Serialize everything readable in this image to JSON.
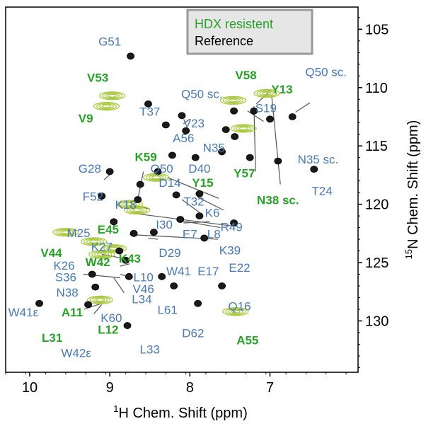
{
  "chart_data": {
    "type": "scatter",
    "title": "",
    "xlabel_sup": "1",
    "xlabel": "H Chem. Shift  (ppm)",
    "ylabel_sup": "15",
    "ylabel": "N Chem. Shift  (ppm)",
    "xlim": [
      10.3,
      5.9
    ],
    "ylim": [
      134.4,
      103.1
    ],
    "x_ticks": [
      10,
      9,
      8,
      7
    ],
    "y_ticks": [
      105,
      110,
      115,
      120,
      125,
      130
    ],
    "legend": {
      "placement": "top-right",
      "entries": [
        {
          "label": "HDX resistent",
          "color": "#2aa02a"
        },
        {
          "label": "Reference",
          "color": "#000000"
        }
      ]
    },
    "colors": {
      "reference_peak": "#1a1a1a",
      "hdx_peak": "#a8c83c",
      "label_blue": "#4a7ab0",
      "label_green": "#2aa02a"
    },
    "series": [
      {
        "name": "Reference",
        "peaks": [
          {
            "x": 8.74,
            "y": 107.3
          },
          {
            "x": 8.52,
            "y": 111.4
          },
          {
            "x": 8.1,
            "y": 112.4
          },
          {
            "x": 7.45,
            "y": 112.0
          },
          {
            "x": 7.2,
            "y": 112.0
          },
          {
            "x": 7.0,
            "y": 112.7
          },
          {
            "x": 6.72,
            "y": 112.5
          },
          {
            "x": 8.3,
            "y": 113.2
          },
          {
            "x": 8.05,
            "y": 113.7
          },
          {
            "x": 7.55,
            "y": 113.6
          },
          {
            "x": 7.44,
            "y": 114.2
          },
          {
            "x": 8.22,
            "y": 115.8
          },
          {
            "x": 7.93,
            "y": 116.0
          },
          {
            "x": 7.6,
            "y": 115.5
          },
          {
            "x": 7.25,
            "y": 116.0
          },
          {
            "x": 6.9,
            "y": 116.3
          },
          {
            "x": 6.45,
            "y": 117.0
          },
          {
            "x": 9.0,
            "y": 117.2
          },
          {
            "x": 8.62,
            "y": 118.3
          },
          {
            "x": 8.4,
            "y": 117.2
          },
          {
            "x": 8.17,
            "y": 119.2
          },
          {
            "x": 7.88,
            "y": 119.1
          },
          {
            "x": 8.65,
            "y": 119.6
          },
          {
            "x": 9.1,
            "y": 119.3
          },
          {
            "x": 8.12,
            "y": 121.3
          },
          {
            "x": 7.88,
            "y": 121.0
          },
          {
            "x": 7.45,
            "y": 121.6
          },
          {
            "x": 8.95,
            "y": 121.5
          },
          {
            "x": 8.7,
            "y": 122.5
          },
          {
            "x": 8.45,
            "y": 122.4
          },
          {
            "x": 7.82,
            "y": 122.9
          },
          {
            "x": 8.88,
            "y": 124.0
          },
          {
            "x": 8.8,
            "y": 124.8
          },
          {
            "x": 9.22,
            "y": 126.0
          },
          {
            "x": 8.76,
            "y": 126.2
          },
          {
            "x": 8.35,
            "y": 126.2
          },
          {
            "x": 9.18,
            "y": 127.1
          },
          {
            "x": 8.2,
            "y": 127.0
          },
          {
            "x": 7.6,
            "y": 127.0
          },
          {
            "x": 9.88,
            "y": 128.5
          },
          {
            "x": 9.27,
            "y": 128.6
          },
          {
            "x": 7.9,
            "y": 128.5
          },
          {
            "x": 8.78,
            "y": 130.4
          }
        ]
      },
      {
        "name": "HDX resistent",
        "peaks": [
          {
            "x": 8.97,
            "y": 110.7
          },
          {
            "x": 9.04,
            "y": 111.6
          },
          {
            "x": 7.46,
            "y": 111.1
          },
          {
            "x": 7.04,
            "y": 110.5
          },
          {
            "x": 7.33,
            "y": 113.5
          },
          {
            "x": 8.42,
            "y": 117.7
          },
          {
            "x": 8.66,
            "y": 120.5
          },
          {
            "x": 8.75,
            "y": 120.0
          },
          {
            "x": 9.55,
            "y": 122.4
          },
          {
            "x": 9.2,
            "y": 123.2
          },
          {
            "x": 8.95,
            "y": 123.8
          },
          {
            "x": 9.1,
            "y": 124.3
          },
          {
            "x": 9.12,
            "y": 128.2
          },
          {
            "x": 7.43,
            "y": 129.2
          }
        ]
      }
    ],
    "labels": [
      {
        "text": "G51",
        "x": 9.0,
        "y": 106.4,
        "color": "blue",
        "anchor": "middle"
      },
      {
        "text": "V53",
        "x": 9.15,
        "y": 109.5,
        "color": "green",
        "anchor": "middle"
      },
      {
        "text": "V9",
        "x": 9.3,
        "y": 113.0,
        "color": "green",
        "anchor": "middle"
      },
      {
        "text": "T37",
        "x": 8.5,
        "y": 112.4,
        "color": "blue",
        "anchor": "middle"
      },
      {
        "text": "Q50 sc.",
        "x": 7.85,
        "y": 110.9,
        "color": "blue",
        "anchor": "middle"
      },
      {
        "text": "V58",
        "x": 7.3,
        "y": 109.3,
        "color": "green",
        "anchor": "middle"
      },
      {
        "text": "Y13",
        "x": 6.85,
        "y": 110.5,
        "color": "green",
        "anchor": "middle"
      },
      {
        "text": "Q50 sc.",
        "x": 6.3,
        "y": 109.0,
        "color": "blue",
        "anchor": "middle"
      },
      {
        "text": "S19",
        "x": 7.05,
        "y": 112.1,
        "color": "blue",
        "anchor": "middle"
      },
      {
        "text": "V23",
        "x": 7.95,
        "y": 113.4,
        "color": "blue",
        "anchor": "middle"
      },
      {
        "text": "A56",
        "x": 8.08,
        "y": 114.7,
        "color": "blue",
        "anchor": "middle"
      },
      {
        "text": "N35",
        "x": 7.7,
        "y": 115.5,
        "color": "blue",
        "anchor": "middle"
      },
      {
        "text": "K59",
        "x": 8.55,
        "y": 116.3,
        "color": "green",
        "anchor": "middle"
      },
      {
        "text": "G28",
        "x": 9.25,
        "y": 117.3,
        "color": "blue",
        "anchor": "middle"
      },
      {
        "text": "Q50",
        "x": 8.35,
        "y": 117.3,
        "color": "blue",
        "anchor": "middle"
      },
      {
        "text": "D40",
        "x": 7.88,
        "y": 117.3,
        "color": "blue",
        "anchor": "middle"
      },
      {
        "text": "Y57",
        "x": 7.32,
        "y": 117.7,
        "color": "green",
        "anchor": "middle"
      },
      {
        "text": "N35 sc.",
        "x": 6.4,
        "y": 116.5,
        "color": "blue",
        "anchor": "middle"
      },
      {
        "text": "D14",
        "x": 8.25,
        "y": 118.5,
        "color": "blue",
        "anchor": "middle"
      },
      {
        "text": "Y15",
        "x": 7.84,
        "y": 118.5,
        "color": "green",
        "anchor": "middle"
      },
      {
        "text": "F52",
        "x": 9.21,
        "y": 119.7,
        "color": "blue",
        "anchor": "middle"
      },
      {
        "text": "T24",
        "x": 6.35,
        "y": 119.2,
        "color": "blue",
        "anchor": "middle"
      },
      {
        "text": "K18",
        "x": 8.8,
        "y": 120.4,
        "color": "blue",
        "anchor": "middle"
      },
      {
        "text": "T32",
        "x": 7.95,
        "y": 120.1,
        "color": "blue",
        "anchor": "middle"
      },
      {
        "text": "N38 sc.",
        "x": 6.9,
        "y": 120.0,
        "color": "green",
        "anchor": "middle"
      },
      {
        "text": "K6",
        "x": 7.72,
        "y": 121.1,
        "color": "blue",
        "anchor": "middle"
      },
      {
        "text": "I30",
        "x": 8.32,
        "y": 122.1,
        "color": "blue",
        "anchor": "middle"
      },
      {
        "text": "E45",
        "x": 9.02,
        "y": 122.5,
        "color": "green",
        "anchor": "middle"
      },
      {
        "text": "R49",
        "x": 7.48,
        "y": 122.3,
        "color": "blue",
        "anchor": "middle"
      },
      {
        "text": "M25",
        "x": 9.39,
        "y": 122.8,
        "color": "blue",
        "anchor": "middle"
      },
      {
        "text": "E7",
        "x": 8.0,
        "y": 122.9,
        "color": "blue",
        "anchor": "middle"
      },
      {
        "text": "L8",
        "x": 7.7,
        "y": 122.9,
        "color": "blue",
        "anchor": "middle"
      },
      {
        "text": "K27",
        "x": 9.1,
        "y": 124.0,
        "color": "blue",
        "anchor": "middle"
      },
      {
        "text": "K39",
        "x": 7.5,
        "y": 124.3,
        "color": "blue",
        "anchor": "middle"
      },
      {
        "text": "V44",
        "x": 9.73,
        "y": 124.5,
        "color": "green",
        "anchor": "middle"
      },
      {
        "text": "D29",
        "x": 8.25,
        "y": 124.5,
        "color": "blue",
        "anchor": "middle"
      },
      {
        "text": "K26",
        "x": 9.57,
        "y": 125.6,
        "color": "blue",
        "anchor": "middle"
      },
      {
        "text": "W42",
        "x": 9.15,
        "y": 125.3,
        "color": "green",
        "anchor": "middle"
      },
      {
        "text": "K43",
        "x": 8.75,
        "y": 125.0,
        "color": "green",
        "anchor": "middle"
      },
      {
        "text": "W41",
        "x": 8.14,
        "y": 126.1,
        "color": "blue",
        "anchor": "middle"
      },
      {
        "text": "E17",
        "x": 7.77,
        "y": 126.1,
        "color": "blue",
        "anchor": "middle"
      },
      {
        "text": "E22",
        "x": 7.38,
        "y": 125.8,
        "color": "blue",
        "anchor": "middle"
      },
      {
        "text": "S36",
        "x": 9.55,
        "y": 126.6,
        "color": "blue",
        "anchor": "middle"
      },
      {
        "text": "L10",
        "x": 8.58,
        "y": 126.6,
        "color": "blue",
        "anchor": "middle"
      },
      {
        "text": "V46",
        "x": 8.58,
        "y": 127.6,
        "color": "blue",
        "anchor": "middle"
      },
      {
        "text": "N38",
        "x": 9.53,
        "y": 127.9,
        "color": "blue",
        "anchor": "middle"
      },
      {
        "text": "L34",
        "x": 8.6,
        "y": 128.5,
        "color": "blue",
        "anchor": "middle"
      },
      {
        "text": "W41ε",
        "x": 10.08,
        "y": 129.6,
        "color": "blue",
        "anchor": "middle"
      },
      {
        "text": "A11",
        "x": 9.47,
        "y": 129.6,
        "color": "green",
        "anchor": "middle"
      },
      {
        "text": "K60",
        "x": 8.98,
        "y": 130.1,
        "color": "blue",
        "anchor": "middle"
      },
      {
        "text": "L61",
        "x": 8.28,
        "y": 129.4,
        "color": "blue",
        "anchor": "middle"
      },
      {
        "text": "Q16",
        "x": 7.38,
        "y": 129.1,
        "color": "blue",
        "anchor": "middle"
      },
      {
        "text": "L12",
        "x": 9.02,
        "y": 131.1,
        "color": "green",
        "anchor": "middle"
      },
      {
        "text": "L31",
        "x": 9.72,
        "y": 131.8,
        "color": "green",
        "anchor": "middle"
      },
      {
        "text": "D62",
        "x": 7.96,
        "y": 131.4,
        "color": "blue",
        "anchor": "middle"
      },
      {
        "text": "A55",
        "x": 7.28,
        "y": 132.0,
        "color": "green",
        "anchor": "middle"
      },
      {
        "text": "W42ε",
        "x": 9.42,
        "y": 133.1,
        "color": "blue",
        "anchor": "middle"
      },
      {
        "text": "L33",
        "x": 8.5,
        "y": 132.8,
        "color": "blue",
        "anchor": "middle"
      }
    ],
    "leader_lines": [
      {
        "from": [
          6.5,
          111.3
        ],
        "to": [
          6.68,
          112.1
        ]
      },
      {
        "from": [
          7.17,
          111.4
        ],
        "to": [
          7.0,
          110.3
        ]
      },
      {
        "from": [
          7.28,
          112.0
        ],
        "to": [
          7.08,
          112.9
        ]
      },
      {
        "from": [
          8.0,
          112.7
        ],
        "to": [
          8.08,
          113.1
        ]
      },
      {
        "from": [
          8.58,
          117.2
        ],
        "to": [
          8.66,
          119.9
        ]
      },
      {
        "from": [
          9.07,
          117.9
        ],
        "to": [
          8.99,
          117.4
        ]
      },
      {
        "from": [
          7.18,
          117.2
        ],
        "to": [
          7.2,
          111.6
        ]
      },
      {
        "from": [
          6.87,
          118.3
        ],
        "to": [
          6.98,
          110.6
        ]
      },
      {
        "from": [
          7.64,
          119.5
        ],
        "to": [
          8.28,
          117.7
        ]
      },
      {
        "from": [
          8.7,
          120.1
        ],
        "to": [
          8.5,
          120.4
        ]
      },
      {
        "from": [
          7.88,
          120.7
        ],
        "to": [
          8.1,
          119.6
        ]
      },
      {
        "from": [
          7.58,
          120.5
        ],
        "to": [
          7.9,
          119.4
        ]
      },
      {
        "from": [
          7.75,
          121.5
        ],
        "to": [
          8.08,
          121.6
        ]
      },
      {
        "from": [
          7.43,
          121.9
        ],
        "to": [
          8.68,
          120.8
        ]
      },
      {
        "from": [
          7.62,
          122.0
        ],
        "to": [
          8.12,
          121.4
        ]
      },
      {
        "from": [
          7.65,
          123.0
        ],
        "to": [
          8.75,
          122.6
        ]
      },
      {
        "from": [
          8.4,
          123.0
        ],
        "to": [
          8.52,
          122.9
        ]
      },
      {
        "from": [
          9.1,
          124.3
        ],
        "to": [
          8.86,
          124.6
        ]
      },
      {
        "from": [
          9.33,
          126.0
        ],
        "to": [
          8.87,
          126.3
        ]
      },
      {
        "from": [
          8.75,
          125.1
        ],
        "to": [
          8.87,
          125.3
        ]
      },
      {
        "from": [
          8.77,
          126.2
        ],
        "to": [
          8.87,
          126.0
        ]
      },
      {
        "from": [
          8.82,
          127.6
        ],
        "to": [
          8.95,
          126.3
        ]
      },
      {
        "from": [
          9.2,
          129.4
        ],
        "to": [
          9.1,
          128.6
        ]
      },
      {
        "from": [
          9.32,
          129.0
        ],
        "to": [
          9.1,
          128.5
        ]
      }
    ]
  }
}
